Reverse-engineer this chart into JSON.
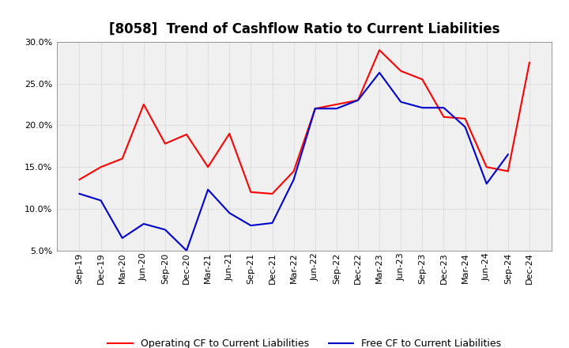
{
  "title": "[8058]  Trend of Cashflow Ratio to Current Liabilities",
  "x_labels": [
    "Sep-19",
    "Dec-19",
    "Mar-20",
    "Jun-20",
    "Sep-20",
    "Dec-20",
    "Mar-21",
    "Jun-21",
    "Sep-21",
    "Dec-21",
    "Mar-22",
    "Jun-22",
    "Sep-22",
    "Dec-22",
    "Mar-23",
    "Jun-23",
    "Sep-23",
    "Dec-23",
    "Mar-24",
    "Jun-24",
    "Sep-24",
    "Dec-24"
  ],
  "operating_cf": [
    13.5,
    15.0,
    16.0,
    22.5,
    17.8,
    18.9,
    15.0,
    19.0,
    12.0,
    11.8,
    14.5,
    22.0,
    22.5,
    23.0,
    29.0,
    26.5,
    25.5,
    21.0,
    20.8,
    15.0,
    14.5,
    27.5
  ],
  "free_cf": [
    11.8,
    11.0,
    6.5,
    8.2,
    7.5,
    5.0,
    12.3,
    9.5,
    8.0,
    8.3,
    13.5,
    22.0,
    22.0,
    23.0,
    26.3,
    22.8,
    22.1,
    22.1,
    19.8,
    13.0,
    16.5,
    null
  ],
  "operating_color": "#ff0000",
  "free_color": "#0000cc",
  "ylim": [
    5.0,
    30.0
  ],
  "yticks": [
    5.0,
    10.0,
    15.0,
    20.0,
    25.0,
    30.0
  ],
  "legend_labels": [
    "Operating CF to Current Liabilities",
    "Free CF to Current Liabilities"
  ],
  "background_color": "#ffffff",
  "plot_bg_color": "#f0f0f0",
  "grid_color": "#aaaaaa",
  "spine_color": "#888888",
  "title_fontsize": 12,
  "tick_fontsize": 8
}
